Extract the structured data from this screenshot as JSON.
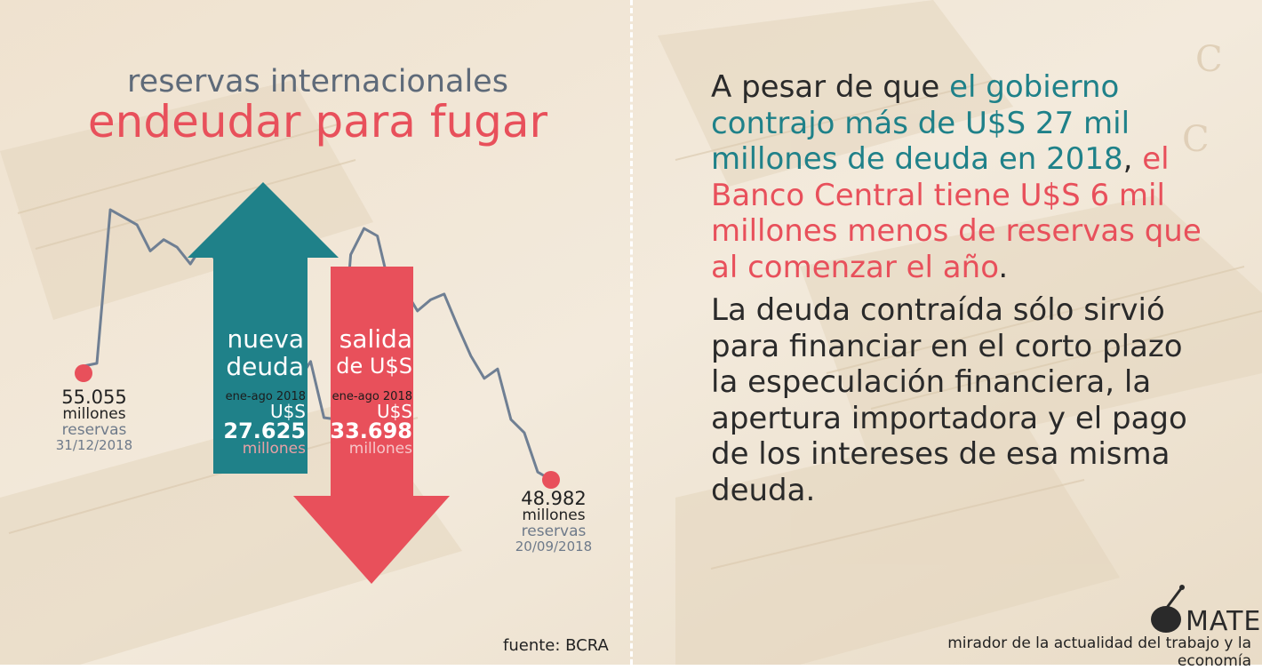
{
  "header": {
    "subtitle": "reservas internacionales",
    "title": "endeudar para fugar"
  },
  "left_marker": {
    "value": "55.055",
    "unit": "millones",
    "label": "reservas",
    "date": "31/12/2018"
  },
  "right_marker": {
    "value": "48.982",
    "unit": "millones",
    "label": "reservas",
    "date": "20/09/2018"
  },
  "up_arrow": {
    "line1": "nueva",
    "line2": "deuda",
    "period": "ene-ago 2018",
    "currency": "U$S",
    "amount": "27.625",
    "unit": "millones"
  },
  "down_arrow": {
    "line1": "salida",
    "line2": "de U$S",
    "period": "ene-ago 2018",
    "currency": "U$S",
    "amount": "33.698",
    "unit": "millones"
  },
  "text": {
    "p1_a": "A pesar de que ",
    "p1_b": "el gobierno contrajo más de U$S 27 mil millones de deuda en 2018",
    "p1_c": ", ",
    "p1_d": "el Banco Central tiene U$S 6 mil millones menos de reservas que al comenzar el año",
    "p1_e": ".",
    "p2": "La deuda contraída sólo sirvió para financiar en el corto plazo la especulación financiera, la apertura importadora y el pago de los intereses de esa misma deuda."
  },
  "footer": {
    "source": "fuente: BCRA",
    "brand": "MATE",
    "tagline": "mirador de la actualidad del trabajo y la economía"
  },
  "colors": {
    "teal": "#1f8189",
    "red": "#e8505b",
    "line": "#6f7f93",
    "background": "#f0e4d2"
  },
  "chart_data": {
    "type": "line",
    "series": [
      {
        "values": [
          55.055,
          55.2,
          63.4,
          63.0,
          62.6,
          61.2,
          61.8,
          61.4,
          60.5,
          61.6,
          60.6,
          58.4,
          58.8,
          61.7,
          60.9,
          52.6,
          54.2,
          55.3,
          52.3,
          52.2,
          61.0,
          62.4,
          62.0,
          59.0,
          59.2,
          58.0,
          58.6,
          58.9,
          57.2,
          55.6,
          54.4,
          54.9,
          52.2,
          51.5,
          49.4,
          48.982
        ]
      }
    ],
    "annotations": [
      {
        "text": "55.055 millones reservas 31/12/2018",
        "value": 55.055
      },
      {
        "text": "48.982 millones reservas 20/09/2018",
        "value": 48.982
      }
    ],
    "bars": [
      {
        "name": "nueva deuda",
        "value": 27.625,
        "unit": "millones U$S",
        "direction": "up"
      },
      {
        "name": "salida de U$S",
        "value": 33.698,
        "unit": "millones U$S",
        "direction": "down"
      }
    ]
  }
}
